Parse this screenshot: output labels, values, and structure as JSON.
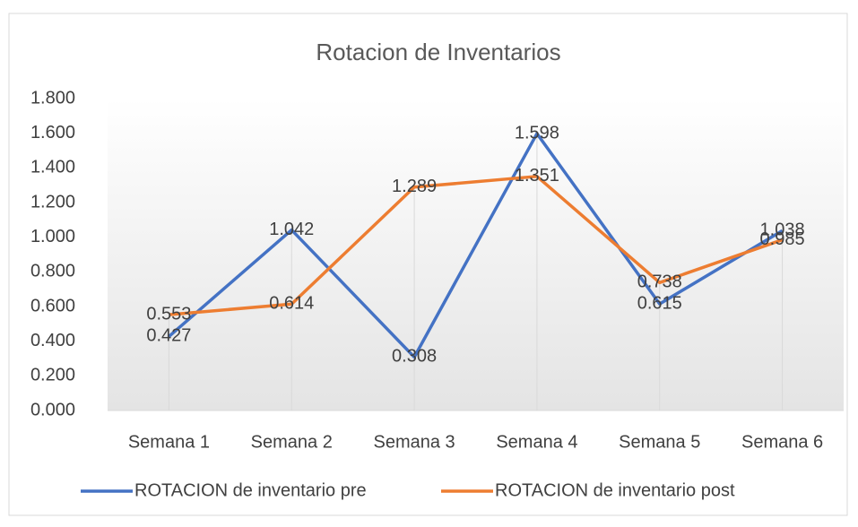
{
  "chart_data": {
    "type": "line",
    "title": "Rotacion de Inventarios",
    "categories": [
      "Semana 1",
      "Semana 2",
      "Semana 3",
      "Semana 4",
      "Semana 5",
      "Semana 6"
    ],
    "series": [
      {
        "name": "ROTACION de inventario pre",
        "color": "#4472c4",
        "values": [
          0.427,
          1.042,
          0.308,
          1.598,
          0.615,
          1.038
        ]
      },
      {
        "name": "ROTACION de inventario post",
        "color": "#ed7d31",
        "values": [
          0.553,
          0.614,
          1.289,
          1.351,
          0.738,
          0.985
        ]
      }
    ],
    "ylim": [
      0,
      1.8
    ],
    "yticks": [
      {
        "value": 0,
        "label": "0.000"
      },
      {
        "value": 0.2,
        "label": "0.200"
      },
      {
        "value": 0.4,
        "label": "0.400"
      },
      {
        "value": 0.6,
        "label": "0.600"
      },
      {
        "value": 0.8,
        "label": "0.800"
      },
      {
        "value": 1,
        "label": "1.000"
      },
      {
        "value": 1.2,
        "label": "1.200"
      },
      {
        "value": 1.4,
        "label": "1.400"
      },
      {
        "value": 1.6,
        "label": "1.600"
      },
      {
        "value": 1.8,
        "label": "1.800"
      }
    ],
    "legend": "bottom"
  }
}
